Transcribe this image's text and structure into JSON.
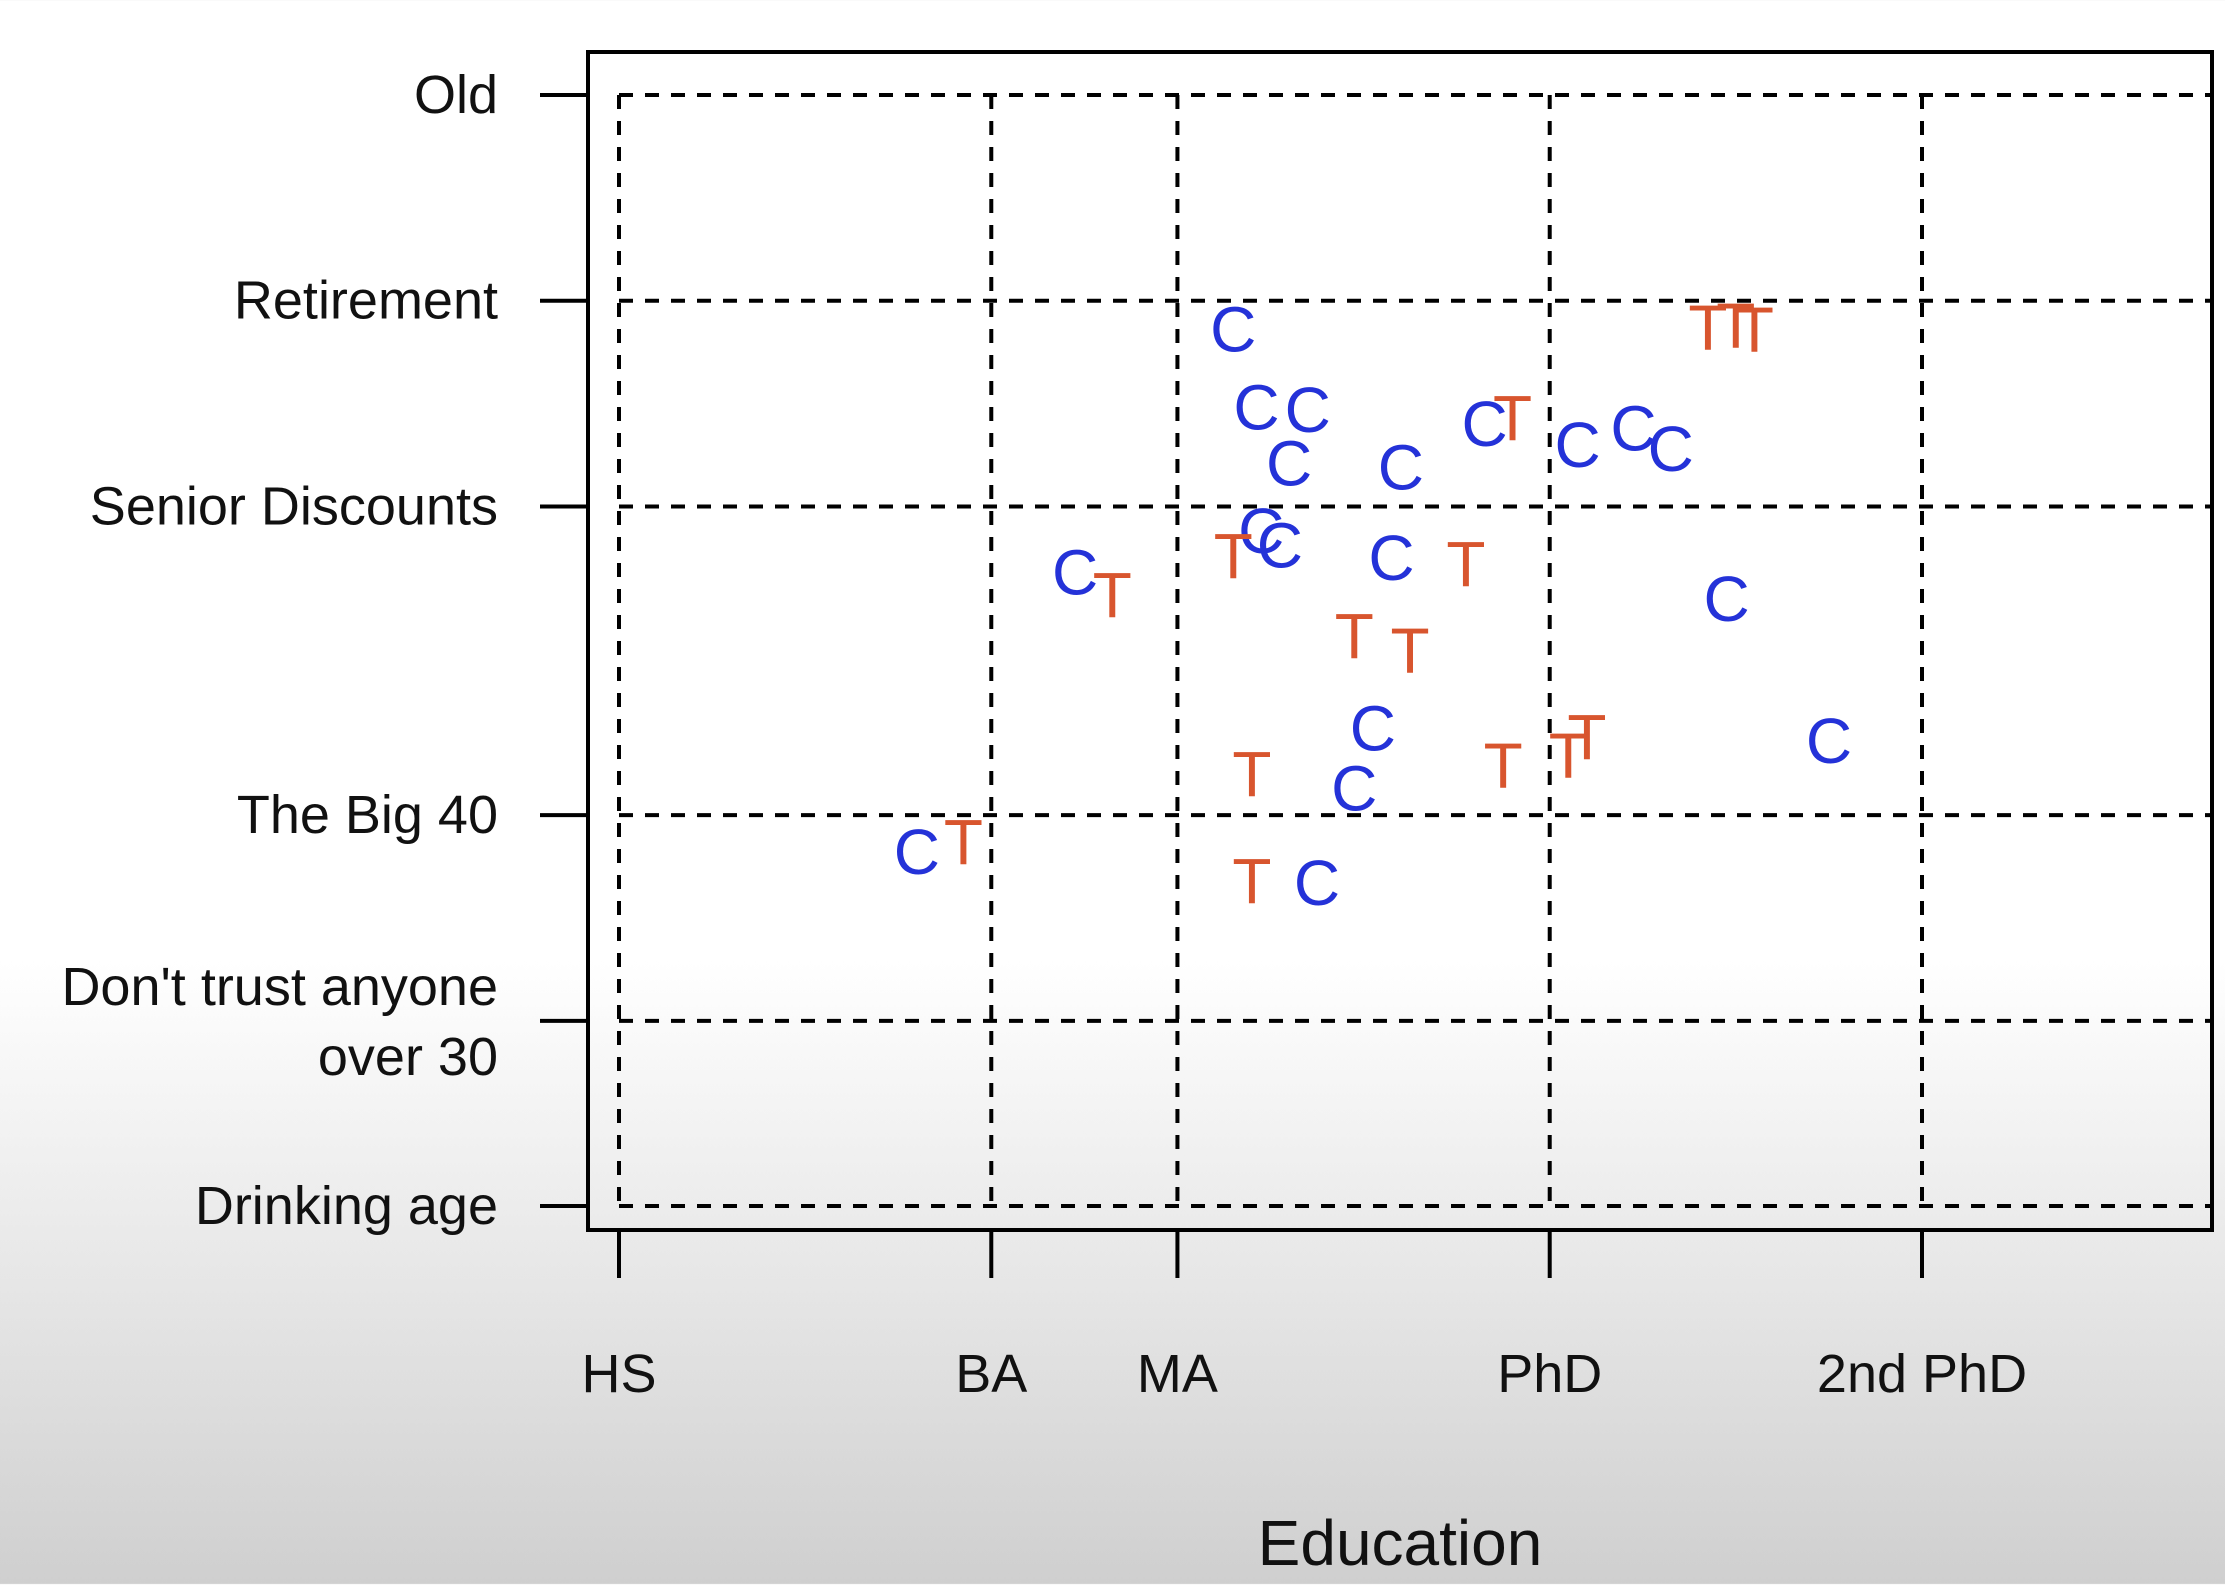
{
  "chart_data": {
    "type": "scatter",
    "title": "",
    "xlabel": "Education",
    "ylabel": "",
    "x_ticks": [
      {
        "label": "HS",
        "value": 12
      },
      {
        "label": "BA",
        "value": 16
      },
      {
        "label": "MA",
        "value": 18
      },
      {
        "label": "PhD",
        "value": 22
      },
      {
        "label": "2nd PhD",
        "value": 26
      }
    ],
    "y_ticks": [
      {
        "label": "Old",
        "value": 75
      },
      {
        "label": "Retirement",
        "value": 65
      },
      {
        "label": "Senior Discounts",
        "value": 55
      },
      {
        "label": "The Big 40",
        "value": 40
      },
      {
        "label": "Don't trust anyone over 30",
        "value": 30
      },
      {
        "label": "Drinking age",
        "value": 21
      }
    ],
    "xlim": [
      12,
      29.5
    ],
    "ylim": [
      21,
      75
    ],
    "grid": true,
    "series": [
      {
        "marker": "C",
        "color": "#2432d8",
        "points": [
          {
            "x": 18.6,
            "y": 63.6
          },
          {
            "x": 18.85,
            "y": 59.8
          },
          {
            "x": 19.4,
            "y": 59.7
          },
          {
            "x": 19.2,
            "y": 57.1
          },
          {
            "x": 20.4,
            "y": 56.9
          },
          {
            "x": 21.3,
            "y": 59.0
          },
          {
            "x": 22.3,
            "y": 58.0
          },
          {
            "x": 22.9,
            "y": 58.8
          },
          {
            "x": 23.3,
            "y": 57.8
          },
          {
            "x": 18.9,
            "y": 53.8
          },
          {
            "x": 19.1,
            "y": 53.1
          },
          {
            "x": 20.3,
            "y": 52.5
          },
          {
            "x": 16.9,
            "y": 51.8
          },
          {
            "x": 23.9,
            "y": 50.5
          },
          {
            "x": 20.1,
            "y": 44.2
          },
          {
            "x": 25.0,
            "y": 43.6
          },
          {
            "x": 19.9,
            "y": 41.3
          },
          {
            "x": 15.2,
            "y": 38.2
          },
          {
            "x": 19.5,
            "y": 36.7
          }
        ]
      },
      {
        "marker": "T",
        "color": "#d8552e",
        "points": [
          {
            "x": 23.7,
            "y": 63.7
          },
          {
            "x": 24.0,
            "y": 63.8
          },
          {
            "x": 24.2,
            "y": 63.6
          },
          {
            "x": 21.6,
            "y": 59.3
          },
          {
            "x": 18.6,
            "y": 52.6
          },
          {
            "x": 21.1,
            "y": 52.2
          },
          {
            "x": 17.3,
            "y": 50.7
          },
          {
            "x": 19.9,
            "y": 48.7
          },
          {
            "x": 20.5,
            "y": 48.0
          },
          {
            "x": 22.4,
            "y": 43.8
          },
          {
            "x": 22.2,
            "y": 42.9
          },
          {
            "x": 21.5,
            "y": 42.4
          },
          {
            "x": 18.8,
            "y": 42.0
          },
          {
            "x": 15.7,
            "y": 38.7
          },
          {
            "x": 18.8,
            "y": 36.8
          }
        ]
      }
    ]
  }
}
